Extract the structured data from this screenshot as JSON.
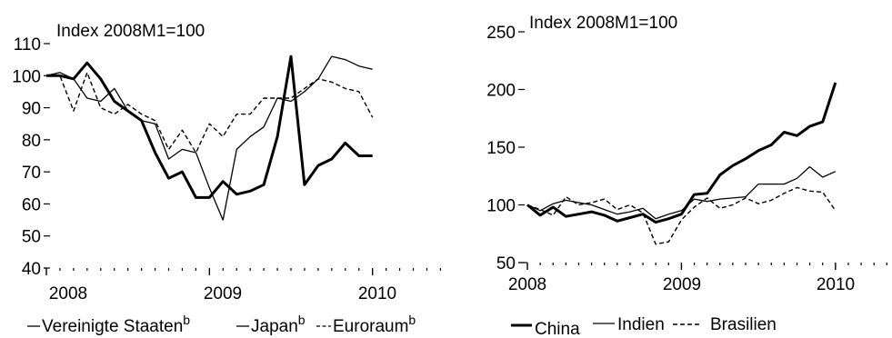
{
  "chart_data": [
    {
      "type": "line",
      "unit_label": "Index 2008M1=100",
      "x_tick_labels": [
        "2008",
        "2009",
        "2010"
      ],
      "x_range": [
        2008,
        2010.42
      ],
      "ylim": [
        40,
        110
      ],
      "y_ticks": [
        40,
        50,
        60,
        70,
        80,
        90,
        100,
        110
      ],
      "y_tick_labels": [
        "40",
        "50",
        "60",
        "70",
        "80",
        "90",
        "100",
        "110"
      ],
      "series": [
        {
          "name": "Vereinigte Staaten",
          "superscript": "b",
          "style": "thick",
          "x": [
            2008.0,
            2008.083,
            2008.167,
            2008.25,
            2008.333,
            2008.417,
            2008.5,
            2008.583,
            2008.667,
            2008.75,
            2008.833,
            2008.917,
            2009.0,
            2009.083,
            2009.167,
            2009.25,
            2009.333,
            2009.417,
            2009.5,
            2009.583,
            2009.667,
            2009.75,
            2009.833,
            2009.917,
            2010.0
          ],
          "y": [
            100,
            100,
            99,
            104,
            99,
            92,
            89,
            86,
            76,
            68,
            70,
            62,
            62,
            67,
            63,
            64,
            66,
            81,
            106,
            66,
            72,
            74,
            79,
            75,
            75
          ]
        },
        {
          "name": "Japan",
          "superscript": "b",
          "style": "thin",
          "x": [
            2008.0,
            2008.083,
            2008.167,
            2008.25,
            2008.333,
            2008.417,
            2008.5,
            2008.583,
            2008.667,
            2008.75,
            2008.833,
            2008.917,
            2009.0,
            2009.083,
            2009.167,
            2009.25,
            2009.333,
            2009.417,
            2009.5,
            2009.583,
            2009.667,
            2009.75,
            2009.833,
            2009.917,
            2010.0
          ],
          "y": [
            100,
            101,
            99,
            93,
            92,
            96,
            89,
            86,
            85,
            74,
            77,
            76,
            65,
            55,
            77,
            81,
            84,
            93,
            92,
            95,
            99,
            106,
            105,
            103,
            102
          ]
        },
        {
          "name": "Euroraum",
          "superscript": "b",
          "style": "dashed",
          "x": [
            2008.0,
            2008.083,
            2008.167,
            2008.25,
            2008.333,
            2008.417,
            2008.5,
            2008.583,
            2008.667,
            2008.75,
            2008.833,
            2008.917,
            2009.0,
            2009.083,
            2009.167,
            2009.25,
            2009.333,
            2009.417,
            2009.5,
            2009.583,
            2009.667,
            2009.75,
            2009.833,
            2009.917,
            2010.0
          ],
          "y": [
            100,
            100,
            89,
            101,
            90,
            88,
            91,
            88,
            86,
            77,
            83,
            76,
            85,
            81,
            88,
            88,
            93,
            93,
            93,
            96,
            99,
            98,
            96,
            95,
            87
          ]
        }
      ]
    },
    {
      "type": "line",
      "unit_label": "Index 2008M1=100",
      "x_tick_labels": [
        "2008",
        "2009",
        "2010"
      ],
      "x_range": [
        2008,
        2010.42
      ],
      "ylim": [
        50,
        250
      ],
      "y_ticks": [
        50,
        100,
        150,
        200,
        250
      ],
      "y_tick_labels": [
        "50",
        "100",
        "150",
        "200",
        "250"
      ],
      "series": [
        {
          "name": "China",
          "style": "thick",
          "x": [
            2008.0,
            2008.083,
            2008.167,
            2008.25,
            2008.333,
            2008.417,
            2008.5,
            2008.583,
            2008.667,
            2008.75,
            2008.833,
            2008.917,
            2009.0,
            2009.083,
            2009.167,
            2009.25,
            2009.333,
            2009.417,
            2009.5,
            2009.583,
            2009.667,
            2009.75,
            2009.833,
            2009.917,
            2010.0
          ],
          "y": [
            100,
            91,
            98,
            90,
            92,
            94,
            91,
            86,
            89,
            92,
            85,
            88,
            92,
            109,
            110,
            126,
            134,
            140,
            147,
            152,
            163,
            160,
            168,
            172,
            206
          ]
        },
        {
          "name": "Indien",
          "style": "thin",
          "x": [
            2008.0,
            2008.083,
            2008.167,
            2008.25,
            2008.333,
            2008.417,
            2008.5,
            2008.583,
            2008.667,
            2008.75,
            2008.833,
            2008.917,
            2009.0,
            2009.083,
            2009.167,
            2009.25,
            2009.333,
            2009.417,
            2009.5,
            2009.583,
            2009.667,
            2009.75,
            2009.833,
            2009.917,
            2010.0
          ],
          "y": [
            100,
            95,
            101,
            104,
            102,
            100,
            96,
            92,
            94,
            97,
            88,
            92,
            95,
            105,
            103,
            105,
            106,
            107,
            118,
            118,
            118,
            123,
            133,
            124,
            129
          ]
        },
        {
          "name": "Brasilien",
          "style": "dashed",
          "x": [
            2008.0,
            2008.083,
            2008.167,
            2008.25,
            2008.333,
            2008.417,
            2008.5,
            2008.583,
            2008.667,
            2008.75,
            2008.833,
            2008.917,
            2009.0,
            2009.083,
            2009.167,
            2009.25,
            2009.333,
            2009.417,
            2009.5,
            2009.583,
            2009.667,
            2009.75,
            2009.833,
            2009.917,
            2010.0
          ],
          "y": [
            100,
            96,
            91,
            107,
            100,
            102,
            105,
            96,
            100,
            93,
            66,
            68,
            87,
            98,
            106,
            97,
            100,
            106,
            101,
            104,
            110,
            115,
            112,
            111,
            95
          ]
        }
      ]
    }
  ]
}
